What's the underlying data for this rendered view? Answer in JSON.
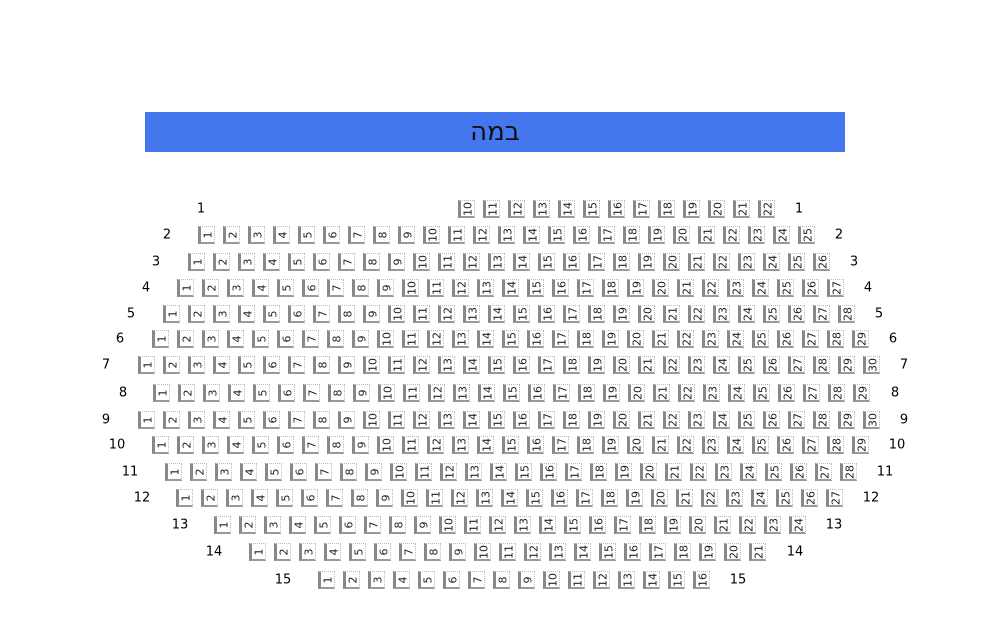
{
  "stage": {
    "label": "במה",
    "color": "#4477ee"
  },
  "rows": [
    {
      "label": "1",
      "from": 10,
      "to": 22
    },
    {
      "label": "2",
      "from": 1,
      "to": 25
    },
    {
      "label": "3",
      "from": 1,
      "to": 26
    },
    {
      "label": "4",
      "from": 1,
      "to": 27
    },
    {
      "label": "5",
      "from": 1,
      "to": 28
    },
    {
      "label": "6",
      "from": 1,
      "to": 29
    },
    {
      "label": "7",
      "from": 1,
      "to": 30
    },
    {
      "label": "8",
      "from": 1,
      "to": 29
    },
    {
      "label": "9",
      "from": 1,
      "to": 30
    },
    {
      "label": "10",
      "from": 1,
      "to": 29
    },
    {
      "label": "11",
      "from": 1,
      "to": 28
    },
    {
      "label": "12",
      "from": 1,
      "to": 27
    },
    {
      "label": "13",
      "from": 1,
      "to": 24
    },
    {
      "label": "14",
      "from": 1,
      "to": 21
    },
    {
      "label": "15",
      "from": 1,
      "to": 16
    }
  ]
}
